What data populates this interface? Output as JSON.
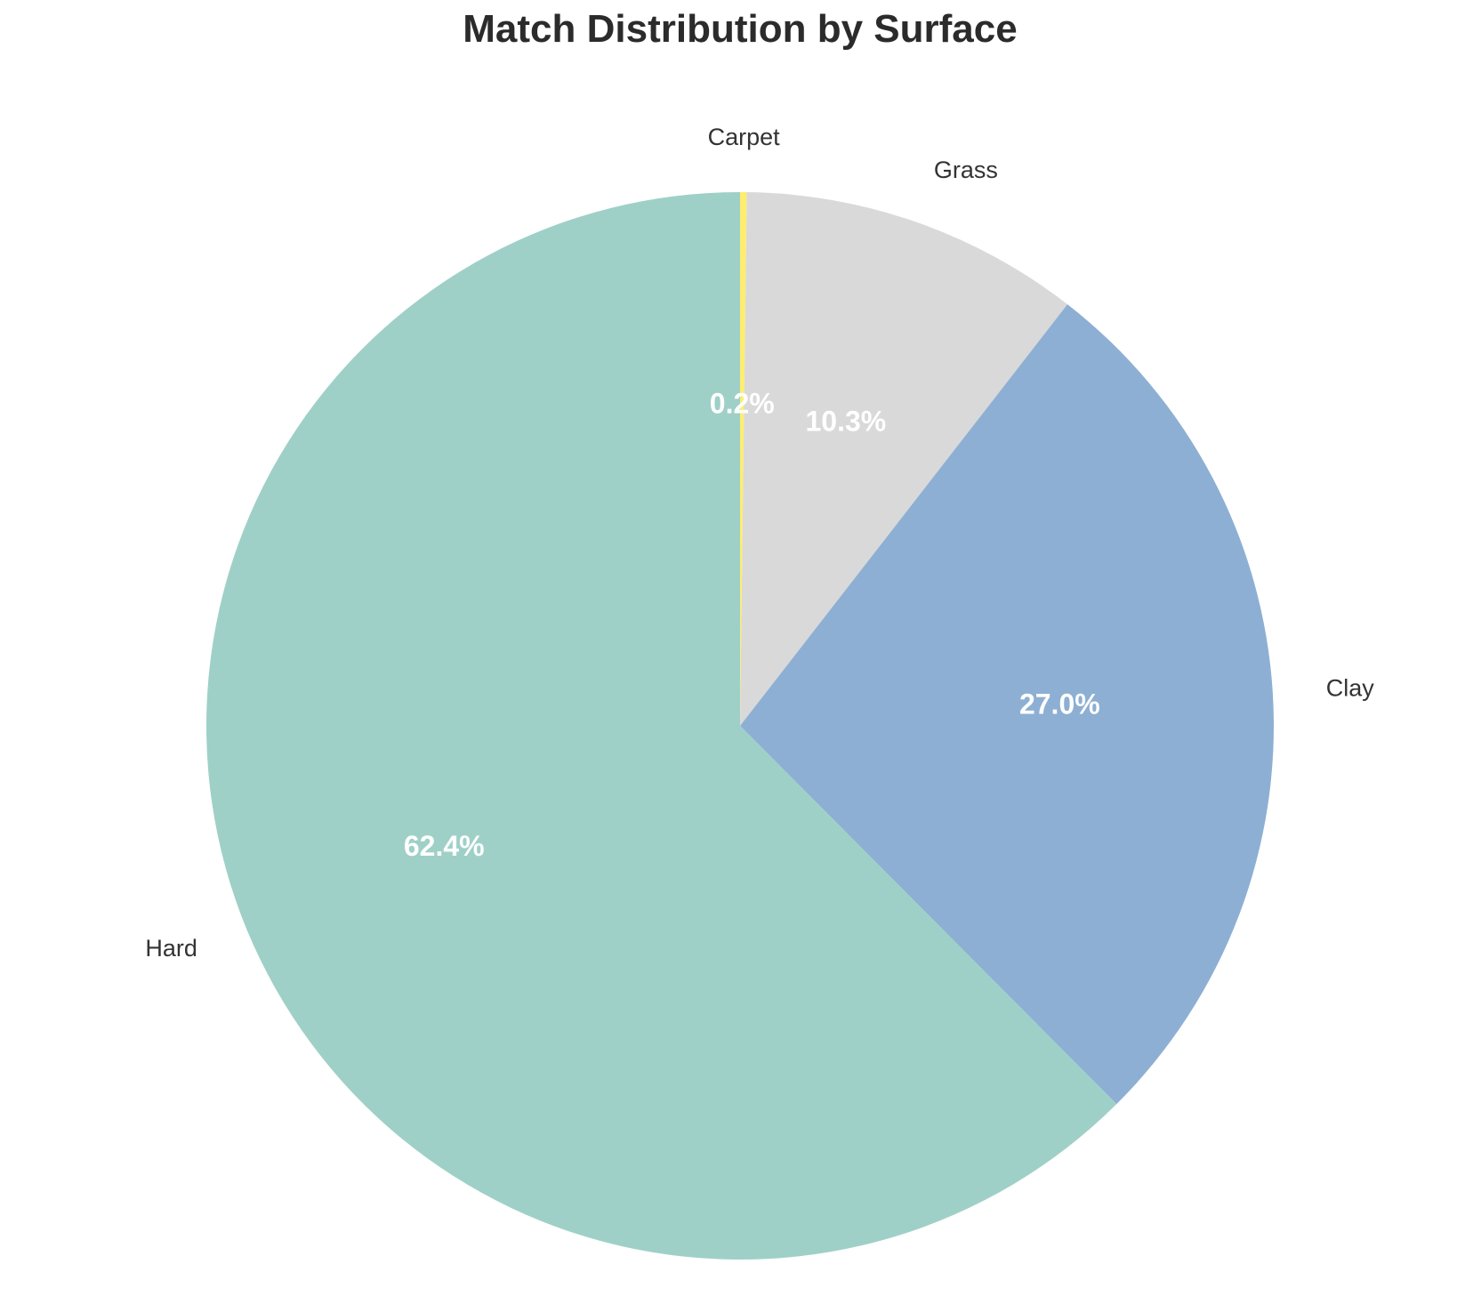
{
  "chart_data": {
    "type": "pie",
    "title": "Match Distribution by Surface",
    "start_angle": "top (12 o'clock)",
    "direction": "clockwise",
    "slices": [
      {
        "label": "Carpet",
        "value": 0.2,
        "pct_label": "0.2%",
        "color": "#ffed6f"
      },
      {
        "label": "Grass",
        "value": 10.3,
        "pct_label": "10.3%",
        "color": "#d9d9d9"
      },
      {
        "label": "Clay",
        "value": 27.0,
        "pct_label": "27.0%",
        "color": "#8dafd3"
      },
      {
        "label": "Hard",
        "value": 62.4,
        "pct_label": "62.4%",
        "color": "#9fd0c7"
      }
    ]
  }
}
